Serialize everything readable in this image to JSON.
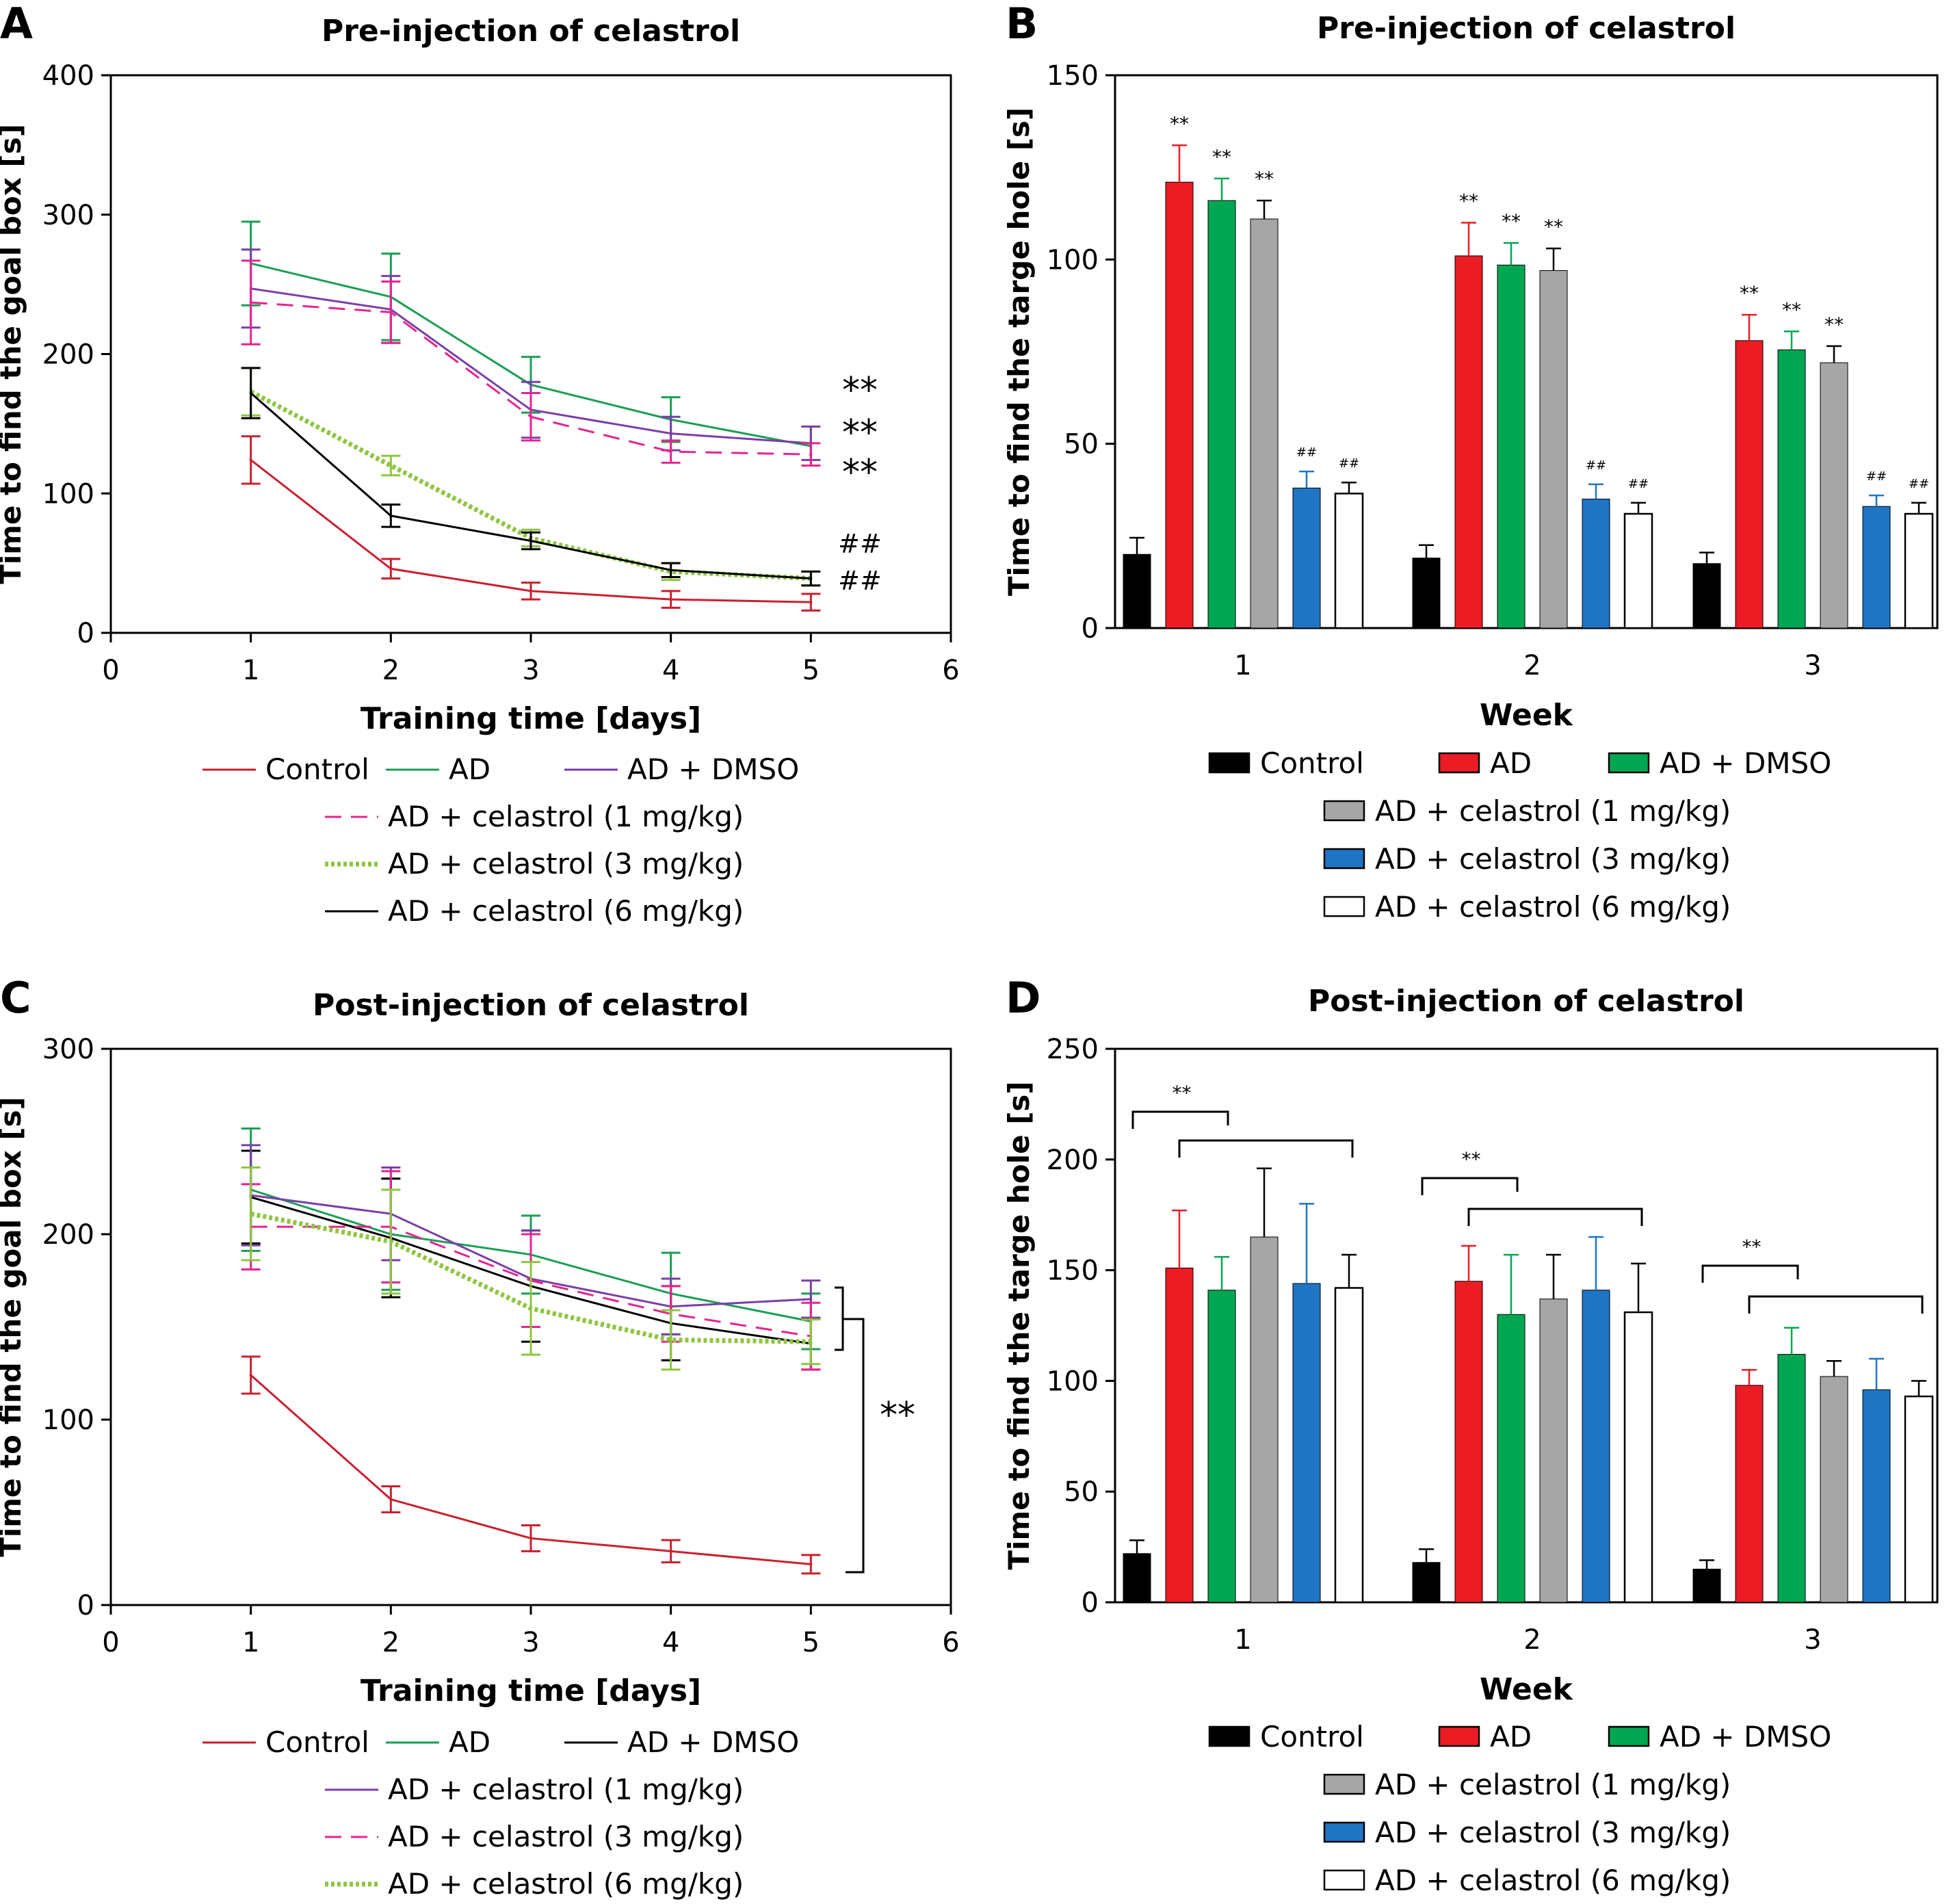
{
  "chart_data": [
    {
      "panel": "A",
      "type": "line",
      "title": "Pre-injection of celastrol",
      "xlabel": "Training time [days]",
      "ylabel": "Time to find the goal box [s]",
      "xlim": [
        0,
        6
      ],
      "ylim": [
        0,
        400
      ],
      "xticks": [
        "0",
        "1",
        "2",
        "3",
        "4",
        "5",
        "6"
      ],
      "yticks": [
        "0",
        "100",
        "200",
        "300",
        "400"
      ],
      "x": [
        1,
        2,
        3,
        4,
        5
      ],
      "series": [
        {
          "name": "Control",
          "color": "#c8202f",
          "dash": "solid",
          "values": [
            124,
            46,
            30,
            24,
            22
          ],
          "errors": [
            17,
            7,
            6,
            6,
            6
          ]
        },
        {
          "name": "AD",
          "color": "#1a9e55",
          "dash": "solid",
          "values": [
            265,
            241,
            178,
            153,
            134
          ],
          "errors": [
            30,
            31,
            20,
            16,
            14
          ]
        },
        {
          "name": "AD + DMSO",
          "color": "#7a3fa8",
          "dash": "solid",
          "values": [
            247,
            232,
            160,
            143,
            136
          ],
          "errors": [
            28,
            24,
            20,
            12,
            12
          ]
        },
        {
          "name": "AD + celastrol (1 mg/kg)",
          "color": "#e6248f",
          "dash": "dashed",
          "values": [
            237,
            230,
            155,
            130,
            128
          ],
          "errors": [
            30,
            22,
            17,
            8,
            8
          ]
        },
        {
          "name": "AD + celastrol (3 mg/kg)",
          "color": "#8ec63f",
          "dash": "dotted",
          "values": [
            173,
            120,
            68,
            44,
            39
          ],
          "errors": [
            17,
            7,
            6,
            6,
            5
          ]
        },
        {
          "name": "AD + celastrol (6 mg/kg)",
          "color": "#000000",
          "dash": "solid",
          "values": [
            172,
            84,
            66,
            45,
            39
          ],
          "errors": [
            18,
            8,
            6,
            5,
            5
          ]
        }
      ],
      "annotations": [
        "**",
        "**",
        "**",
        "##",
        "##"
      ],
      "legend_position": "bottom"
    },
    {
      "panel": "B",
      "type": "bar",
      "title": "Pre-injection of celastrol",
      "xlabel": "Week",
      "ylabel": "Time to find the targe hole [s]",
      "ylim": [
        0,
        150
      ],
      "yticks": [
        "0",
        "50",
        "100",
        "150"
      ],
      "categories": [
        "1",
        "2",
        "3"
      ],
      "series": [
        {
          "name": "Control",
          "color": "#000000",
          "err_color": "#000000",
          "values": [
            20,
            19,
            17.5
          ],
          "errors": [
            4.5,
            3.5,
            3
          ],
          "marks": [
            "",
            "",
            ""
          ]
        },
        {
          "name": "AD",
          "color": "#ec1c24",
          "err_color": "#ec1c24",
          "values": [
            121,
            101,
            78
          ],
          "errors": [
            10,
            9,
            7
          ],
          "marks": [
            "**",
            "**",
            "**"
          ]
        },
        {
          "name": "AD + DMSO",
          "color": "#00a651",
          "err_color": "#00a651",
          "values": [
            116,
            98.5,
            75.5
          ],
          "errors": [
            6,
            6,
            5
          ],
          "marks": [
            "**",
            "**",
            "**"
          ]
        },
        {
          "name": "AD + celastrol (1 mg/kg)",
          "color": "#a6a6a6",
          "err_color": "#000000",
          "values": [
            111,
            97,
            72
          ],
          "errors": [
            5,
            6,
            4.5
          ],
          "marks": [
            "**",
            "**",
            "**"
          ]
        },
        {
          "name": "AD + celastrol (3 mg/kg)",
          "color": "#1f75c4",
          "err_color": "#1f75c4",
          "values": [
            38,
            35,
            33
          ],
          "errors": [
            4.5,
            4,
            3
          ],
          "marks": [
            "##",
            "##",
            "##"
          ]
        },
        {
          "name": "AD + celastrol (6 mg/kg)",
          "color": "#ffffff",
          "err_color": "#000000",
          "values": [
            36.5,
            31,
            31
          ],
          "errors": [
            3,
            3,
            3
          ],
          "marks": [
            "##",
            "##",
            "##"
          ]
        }
      ],
      "legend_position": "bottom"
    },
    {
      "panel": "C",
      "type": "line",
      "title": "Post-injection of celastrol",
      "xlabel": "Training time [days]",
      "ylabel": "Time to find the goal box [s]",
      "xlim": [
        0,
        6
      ],
      "ylim": [
        0,
        300
      ],
      "xticks": [
        "0",
        "1",
        "2",
        "3",
        "4",
        "5",
        "6"
      ],
      "yticks": [
        "0",
        "100",
        "200",
        "300"
      ],
      "x": [
        1,
        2,
        3,
        4,
        5
      ],
      "series": [
        {
          "name": "Control",
          "color": "#c8202f",
          "dash": "solid",
          "values": [
            124,
            57,
            36,
            29,
            22
          ],
          "errors": [
            10,
            7,
            7,
            6,
            5
          ]
        },
        {
          "name": "AD",
          "color": "#1a9e55",
          "dash": "solid",
          "values": [
            224,
            200,
            189,
            168,
            153
          ],
          "errors": [
            33,
            30,
            21,
            22,
            15
          ]
        },
        {
          "name": "AD + DMSO",
          "color": "#000000",
          "dash": "solid",
          "values": [
            220,
            198,
            172,
            152,
            141
          ],
          "errors": [
            25,
            32,
            30,
            20,
            14
          ]
        },
        {
          "name": "AD + celastrol (1 mg/kg)",
          "color": "#7a3fa8",
          "dash": "solid",
          "values": [
            221,
            211,
            176,
            161,
            165
          ],
          "errors": [
            27,
            25,
            26,
            15,
            10
          ]
        },
        {
          "name": "AD + celastrol (3 mg/kg)",
          "color": "#e6248f",
          "dash": "dashed",
          "values": [
            204,
            204,
            175,
            157,
            145
          ],
          "errors": [
            23,
            30,
            25,
            15,
            18
          ]
        },
        {
          "name": "AD + celastrol (6 mg/kg)",
          "color": "#8ec63f",
          "dash": "dotted",
          "values": [
            211,
            196,
            160,
            143,
            142
          ],
          "errors": [
            25,
            28,
            25,
            16,
            12
          ]
        }
      ],
      "annotations": [
        "**"
      ],
      "legend_position": "bottom"
    },
    {
      "panel": "D",
      "type": "bar",
      "title": "Post-injection of celastrol",
      "xlabel": "Week",
      "ylabel": "Time to find the targe hole [s]",
      "ylim": [
        0,
        250
      ],
      "yticks": [
        "0",
        "50",
        "100",
        "150",
        "200",
        "250"
      ],
      "categories": [
        "1",
        "2",
        "3"
      ],
      "series": [
        {
          "name": "Control",
          "color": "#000000",
          "err_color": "#000000",
          "values": [
            22,
            18,
            15
          ],
          "errors": [
            6,
            6,
            4
          ]
        },
        {
          "name": "AD",
          "color": "#ec1c24",
          "err_color": "#ec1c24",
          "values": [
            151,
            145,
            98
          ],
          "errors": [
            26,
            16,
            7
          ]
        },
        {
          "name": "AD + DMSO",
          "color": "#00a651",
          "err_color": "#00a651",
          "values": [
            141,
            130,
            112
          ],
          "errors": [
            15,
            27,
            12
          ]
        },
        {
          "name": "AD + celastrol (1 mg/kg)",
          "color": "#a6a6a6",
          "err_color": "#000000",
          "values": [
            165,
            137,
            102
          ],
          "errors": [
            31,
            20,
            7
          ]
        },
        {
          "name": "AD + celastrol (3 mg/kg)",
          "color": "#1f75c4",
          "err_color": "#1f75c4",
          "values": [
            144,
            141,
            96
          ],
          "errors": [
            36,
            24,
            14
          ]
        },
        {
          "name": "AD + celastrol (6 mg/kg)",
          "color": "#ffffff",
          "err_color": "#000000",
          "values": [
            142,
            131,
            93
          ],
          "errors": [
            15,
            22,
            7
          ]
        }
      ],
      "brackets": [
        {
          "week": "1",
          "label": "**"
        },
        {
          "week": "2",
          "label": "**"
        },
        {
          "week": "3",
          "label": "**"
        }
      ],
      "legend_position": "bottom"
    }
  ]
}
